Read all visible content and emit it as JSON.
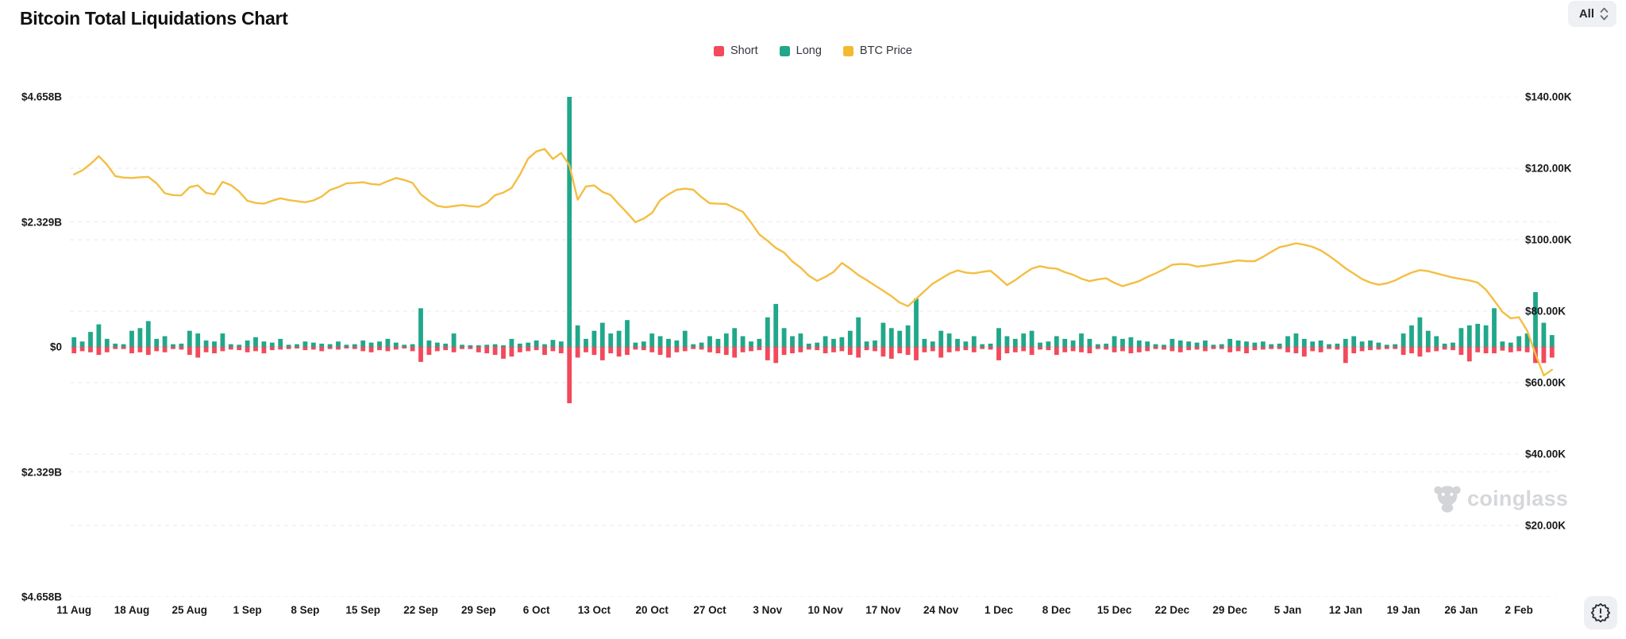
{
  "header": {
    "title": "Bitcoin Total Liquidations Chart",
    "range_selector": {
      "value": "All"
    }
  },
  "legend": {
    "items": [
      {
        "label": "Short",
        "color": "#F2495B"
      },
      {
        "label": "Long",
        "color": "#21A78A"
      },
      {
        "label": "BTC Price",
        "color": "#F3BA2F"
      }
    ]
  },
  "watermark": {
    "text": "coinglass"
  },
  "chart_data": {
    "type": "combo",
    "title": "Bitcoin Total Liquidations Chart",
    "grid": "dashed-horizontal",
    "legend_position": "top-center",
    "x_labels": [
      "11 Aug",
      "18 Aug",
      "25 Aug",
      "1 Sep",
      "8 Sep",
      "15 Sep",
      "22 Sep",
      "29 Sep",
      "6 Oct",
      "13 Oct",
      "20 Oct",
      "27 Oct",
      "3 Nov",
      "10 Nov",
      "17 Nov",
      "24 Nov",
      "1 Dec",
      "8 Dec",
      "15 Dec",
      "22 Dec",
      "29 Dec",
      "5 Jan",
      "12 Jan",
      "19 Jan",
      "26 Jan",
      "2 Feb"
    ],
    "left_axis": {
      "ticks": [
        "$4.658B",
        "$2.329B",
        "$0",
        "$2.329B",
        "$4.658B"
      ],
      "max_billions": 4.658,
      "mirrored": true
    },
    "right_axis": {
      "ticks": [
        "$140.00K",
        "$120.00K",
        "$100.00K",
        "$80.00K",
        "$60.00K",
        "$40.00K",
        "$20.00K"
      ],
      "top_value": 140,
      "step_value": 20
    },
    "series": [
      {
        "name": "Short",
        "type": "bar",
        "direction": "down",
        "color": "#F2495B",
        "unit": "billion USD",
        "values": [
          0.12,
          0.08,
          0.1,
          0.15,
          0.1,
          0.04,
          0.04,
          0.12,
          0.1,
          0.15,
          0.08,
          0.1,
          0.04,
          0.05,
          0.15,
          0.2,
          0.1,
          0.12,
          0.08,
          0.05,
          0.06,
          0.1,
          0.08,
          0.12,
          0.06,
          0.05,
          0.04,
          0.03,
          0.06,
          0.05,
          0.08,
          0.04,
          0.05,
          0.03,
          0.04,
          0.08,
          0.1,
          0.06,
          0.08,
          0.05,
          0.03,
          0.08,
          0.28,
          0.15,
          0.08,
          0.06,
          0.1,
          0.04,
          0.04,
          0.1,
          0.12,
          0.15,
          0.22,
          0.18,
          0.1,
          0.08,
          0.06,
          0.15,
          0.08,
          0.12,
          1.05,
          0.2,
          0.1,
          0.15,
          0.25,
          0.12,
          0.18,
          0.15,
          0.05,
          0.06,
          0.1,
          0.15,
          0.2,
          0.1,
          0.08,
          0.04,
          0.05,
          0.1,
          0.12,
          0.15,
          0.2,
          0.1,
          0.08,
          0.06,
          0.25,
          0.3,
          0.15,
          0.12,
          0.1,
          0.05,
          0.06,
          0.12,
          0.1,
          0.08,
          0.15,
          0.2,
          0.06,
          0.08,
          0.18,
          0.22,
          0.12,
          0.15,
          0.25,
          0.1,
          0.08,
          0.2,
          0.1,
          0.08,
          0.06,
          0.1,
          0.04,
          0.05,
          0.25,
          0.12,
          0.1,
          0.08,
          0.15,
          0.05,
          0.06,
          0.15,
          0.1,
          0.08,
          0.1,
          0.12,
          0.04,
          0.05,
          0.1,
          0.08,
          0.12,
          0.1,
          0.08,
          0.04,
          0.05,
          0.08,
          0.1,
          0.06,
          0.05,
          0.08,
          0.04,
          0.04,
          0.1,
          0.08,
          0.12,
          0.06,
          0.05,
          0.04,
          0.04,
          0.1,
          0.12,
          0.18,
          0.08,
          0.1,
          0.04,
          0.05,
          0.3,
          0.12,
          0.08,
          0.06,
          0.05,
          0.04,
          0.04,
          0.15,
          0.12,
          0.18,
          0.1,
          0.08,
          0.05,
          0.06,
          0.15,
          0.27,
          0.1,
          0.12,
          0.12,
          0.07,
          0.1,
          0.08,
          0.1,
          0.3,
          0.3,
          0.2
        ]
      },
      {
        "name": "Long",
        "type": "bar",
        "direction": "up",
        "color": "#21A78A",
        "unit": "billion USD",
        "values": [
          0.18,
          0.1,
          0.28,
          0.42,
          0.15,
          0.06,
          0.05,
          0.3,
          0.35,
          0.48,
          0.15,
          0.2,
          0.05,
          0.06,
          0.3,
          0.25,
          0.12,
          0.1,
          0.25,
          0.05,
          0.04,
          0.12,
          0.18,
          0.1,
          0.08,
          0.15,
          0.04,
          0.05,
          0.1,
          0.08,
          0.06,
          0.05,
          0.1,
          0.04,
          0.05,
          0.12,
          0.08,
          0.1,
          0.15,
          0.08,
          0.04,
          0.05,
          0.72,
          0.12,
          0.08,
          0.06,
          0.25,
          0.04,
          0.03,
          0.03,
          0.04,
          0.05,
          0.03,
          0.15,
          0.06,
          0.08,
          0.12,
          0.05,
          0.13,
          0.1,
          4.658,
          0.4,
          0.15,
          0.3,
          0.45,
          0.25,
          0.3,
          0.5,
          0.08,
          0.1,
          0.25,
          0.2,
          0.15,
          0.12,
          0.3,
          0.05,
          0.08,
          0.2,
          0.15,
          0.25,
          0.35,
          0.2,
          0.1,
          0.15,
          0.55,
          0.8,
          0.35,
          0.2,
          0.25,
          0.06,
          0.08,
          0.2,
          0.15,
          0.18,
          0.3,
          0.55,
          0.1,
          0.12,
          0.45,
          0.35,
          0.3,
          0.4,
          0.9,
          0.15,
          0.1,
          0.3,
          0.25,
          0.15,
          0.1,
          0.2,
          0.05,
          0.06,
          0.35,
          0.2,
          0.15,
          0.25,
          0.3,
          0.08,
          0.1,
          0.2,
          0.15,
          0.12,
          0.25,
          0.15,
          0.05,
          0.06,
          0.2,
          0.15,
          0.18,
          0.12,
          0.1,
          0.05,
          0.04,
          0.15,
          0.12,
          0.1,
          0.08,
          0.12,
          0.04,
          0.05,
          0.15,
          0.12,
          0.1,
          0.08,
          0.1,
          0.05,
          0.06,
          0.2,
          0.25,
          0.15,
          0.1,
          0.12,
          0.05,
          0.06,
          0.15,
          0.2,
          0.1,
          0.12,
          0.08,
          0.04,
          0.05,
          0.25,
          0.4,
          0.55,
          0.3,
          0.2,
          0.06,
          0.08,
          0.35,
          0.4,
          0.43,
          0.4,
          0.72,
          0.1,
          0.08,
          0.2,
          0.25,
          1.02,
          0.45,
          0.22
        ]
      },
      {
        "name": "BTC Price",
        "type": "line",
        "axis": "right",
        "color": "#F4BE42",
        "unit": "thousand USD",
        "values": [
          118.3,
          119.4,
          121.2,
          123.4,
          121.0,
          117.8,
          117.4,
          117.3,
          117.5,
          117.6,
          115.8,
          113.0,
          112.5,
          112.4,
          114.7,
          115.2,
          113.1,
          112.7,
          116.2,
          115.3,
          113.5,
          110.9,
          110.3,
          110.1,
          110.9,
          111.6,
          111.1,
          110.8,
          110.5,
          111.0,
          112.1,
          113.9,
          114.7,
          115.8,
          115.9,
          116.1,
          115.6,
          115.4,
          116.4,
          117.3,
          116.7,
          115.9,
          112.7,
          110.9,
          109.5,
          109.1,
          109.4,
          109.7,
          109.4,
          109.2,
          110.3,
          112.5,
          113.2,
          114.5,
          118.2,
          122.7,
          124.7,
          125.4,
          122.6,
          124.3,
          120.8,
          111.2,
          114.9,
          115.2,
          113.4,
          112.5,
          109.9,
          107.5,
          104.9,
          105.9,
          107.5,
          111.1,
          112.7,
          114.0,
          114.3,
          114.0,
          111.9,
          110.2,
          110.1,
          110.0,
          108.9,
          107.8,
          104.8,
          101.5,
          99.7,
          97.7,
          96.4,
          93.9,
          92.2,
          89.9,
          88.5,
          89.6,
          91.0,
          93.5,
          91.9,
          90.1,
          88.7,
          87.2,
          85.7,
          84.2,
          82.4,
          81.4,
          83.5,
          85.6,
          87.7,
          89.1,
          90.5,
          91.4,
          90.8,
          90.6,
          91.0,
          91.3,
          89.4,
          87.3,
          88.7,
          90.4,
          91.9,
          92.6,
          92.1,
          91.9,
          90.9,
          90.2,
          89.1,
          88.4,
          88.9,
          89.2,
          87.9,
          87.0,
          87.7,
          88.4,
          89.6,
          90.6,
          91.7,
          93.0,
          93.2,
          93.1,
          92.5,
          92.7,
          93.1,
          93.4,
          93.8,
          94.2,
          94.0,
          94.0,
          95.2,
          96.6,
          97.9,
          98.4,
          99.0,
          98.6,
          98.0,
          97.0,
          95.5,
          93.8,
          92.0,
          90.5,
          89.0,
          88.0,
          87.4,
          87.8,
          88.6,
          89.8,
          90.8,
          91.5,
          91.2,
          90.6,
          90.0,
          89.4,
          89.0,
          88.6,
          88.0,
          86.0,
          83.0,
          79.8,
          78.0,
          78.3,
          74.5,
          68.0,
          62.0,
          63.6
        ]
      }
    ]
  }
}
